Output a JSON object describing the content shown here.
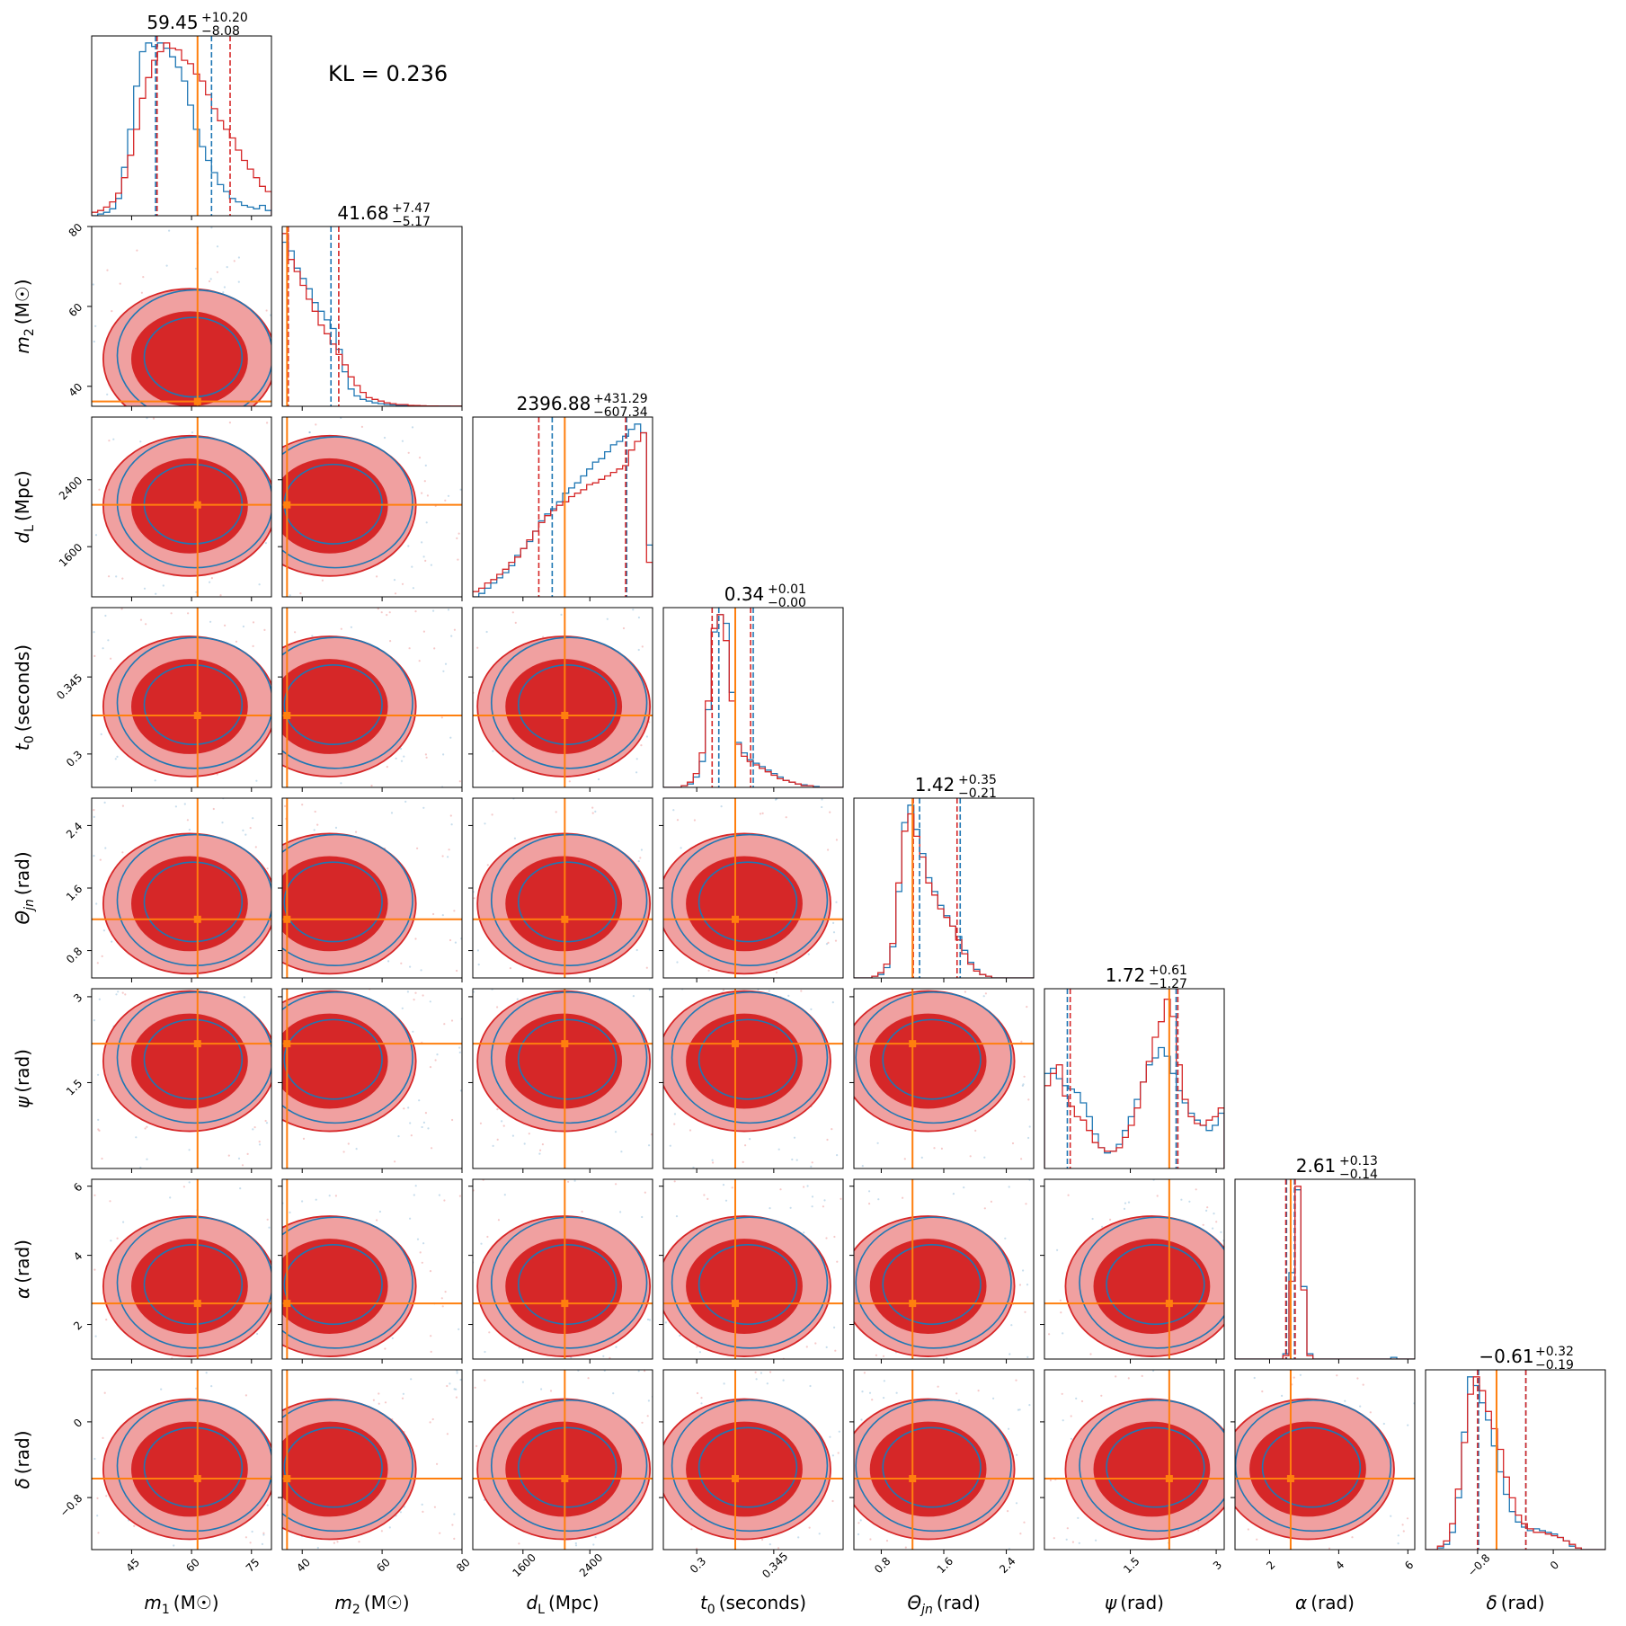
{
  "figure": {
    "annotation": "KL = 0.236"
  },
  "chart_data": {
    "type": "corner",
    "colors": {
      "reference": "#1f77b4",
      "model": "#d62728",
      "model_light": "#f0a0a0",
      "truth": "#ff7f0e"
    },
    "parameters": [
      {
        "label": "m₁ (M☉)",
        "sym": "m",
        "sub": "1",
        "unit": "(M☉)",
        "range": [
          35,
          80
        ],
        "truth": 61.5,
        "ticks": [
          45,
          60,
          75
        ],
        "title_value": "59.45",
        "title_plus": "+10.20",
        "title_minus": "−8.08",
        "quantiles": {
          "model": [
            51.37,
            69.65
          ],
          "reference": [
            51.0,
            65.0
          ]
        },
        "hist_model": [
          0.02,
          0.03,
          0.05,
          0.08,
          0.13,
          0.22,
          0.35,
          0.5,
          0.68,
          0.8,
          0.9,
          0.95,
          1.0,
          0.97,
          0.96,
          0.9,
          0.88,
          0.82,
          0.78,
          0.7,
          0.62,
          0.55,
          0.5,
          0.45,
          0.38,
          0.32,
          0.27,
          0.22,
          0.17,
          0.14
        ],
        "hist_ref": [
          0.0,
          0.01,
          0.02,
          0.04,
          0.1,
          0.28,
          0.5,
          0.75,
          0.95,
          1.0,
          0.98,
          1.0,
          0.97,
          0.92,
          0.86,
          0.78,
          0.64,
          0.5,
          0.4,
          0.32,
          0.25,
          0.18,
          0.14,
          0.1,
          0.08,
          0.06,
          0.05,
          0.04,
          0.06,
          0.03
        ]
      },
      {
        "label": "m₂ (M☉)",
        "sym": "m",
        "sub": "2",
        "unit": "(M☉)",
        "range": [
          35,
          80
        ],
        "truth": 36.2,
        "ticks": [
          40,
          60,
          80
        ],
        "title_value": "41.68",
        "title_plus": "+7.47",
        "title_minus": "−5.17",
        "quantiles": {
          "model": [
            36.51,
            49.15
          ],
          "reference": [
            36.3,
            47.2
          ]
        },
        "hist_model": [
          1.0,
          0.85,
          0.78,
          0.7,
          0.62,
          0.55,
          0.47,
          0.42,
          0.36,
          0.3,
          0.24,
          0.17,
          0.12,
          0.08,
          0.05,
          0.04,
          0.03,
          0.02,
          0.015,
          0.01,
          0.01,
          0.005,
          0.004,
          0.003,
          0.002,
          0.002,
          0.001,
          0.001,
          0.001,
          0.001
        ],
        "hist_ref": [
          0.95,
          0.9,
          0.8,
          0.74,
          0.68,
          0.6,
          0.55,
          0.5,
          0.45,
          0.33,
          0.2,
          0.1,
          0.06,
          0.04,
          0.03,
          0.02,
          0.015,
          0.01,
          0.008,
          0.005,
          0.004,
          0.003,
          0.002,
          0.002,
          0.001,
          0.001,
          0.001,
          0.001,
          0.0,
          0.0
        ]
      },
      {
        "label": "d_L (Mpc)",
        "sym": "d",
        "sub": "L",
        "unit": "(Mpc)",
        "range": [
          1000,
          3150
        ],
        "truth": 2100,
        "ticks": [
          1600,
          2400
        ],
        "title_value": "2396.88",
        "title_plus": "+431.29",
        "title_minus": "−607.34",
        "quantiles": {
          "model": [
            1789.54,
            2828.17
          ],
          "reference": [
            1950.0,
            2840.0
          ]
        },
        "hist_model": [
          0.03,
          0.05,
          0.08,
          0.1,
          0.13,
          0.16,
          0.2,
          0.23,
          0.28,
          0.33,
          0.38,
          0.43,
          0.47,
          0.5,
          0.53,
          0.55,
          0.58,
          0.6,
          0.62,
          0.65,
          0.66,
          0.68,
          0.7,
          0.72,
          0.74,
          0.76,
          0.85,
          0.9,
          0.95,
          0.2
        ],
        "hist_ref": [
          0.0,
          0.02,
          0.05,
          0.08,
          0.11,
          0.14,
          0.18,
          0.24,
          0.28,
          0.32,
          0.38,
          0.44,
          0.48,
          0.51,
          0.55,
          0.6,
          0.63,
          0.66,
          0.7,
          0.74,
          0.78,
          0.8,
          0.84,
          0.88,
          0.9,
          0.93,
          0.97,
          1.0,
          0.95,
          0.3
        ]
      },
      {
        "label": "t₀ (seconds)",
        "sym": "t",
        "sub": "0",
        "unit": "(seconds)",
        "range": [
          0.3235,
          0.3585
        ],
        "truth": 0.3375,
        "ticks": [
          0.33,
          0.345
        ],
        "title_value": "0.34",
        "title_plus": "+0.01",
        "title_minus": "−0.00",
        "quantiles": {
          "model": [
            0.333,
            0.3405
          ],
          "reference": [
            0.3343,
            0.341
          ]
        },
        "hist_model": [
          0.0,
          0.0,
          0.0,
          0.01,
          0.03,
          0.08,
          0.2,
          0.5,
          0.92,
          1.0,
          0.85,
          0.5,
          0.25,
          0.18,
          0.15,
          0.13,
          0.11,
          0.09,
          0.07,
          0.05,
          0.04,
          0.03,
          0.02,
          0.01,
          0.01,
          0.0,
          0.0,
          0.0,
          0.0,
          0.0
        ],
        "hist_ref": [
          0.0,
          0.0,
          0.0,
          0.01,
          0.02,
          0.06,
          0.15,
          0.45,
          0.9,
          1.0,
          0.95,
          0.55,
          0.26,
          0.2,
          0.16,
          0.14,
          0.12,
          0.1,
          0.08,
          0.06,
          0.04,
          0.03,
          0.02,
          0.015,
          0.01,
          0.005,
          0.0,
          0.0,
          0.0,
          0.0
        ]
      },
      {
        "label": "Θ_jn (rad)",
        "sym": "Θ",
        "sub": "jn",
        "unit": "(rad)",
        "range": [
          0.45,
          2.75
        ],
        "truth": 1.2,
        "ticks": [
          0.8,
          1.6,
          2.4
        ],
        "title_value": "1.42",
        "title_plus": "+0.35",
        "title_minus": "−0.21",
        "quantiles": {
          "model": [
            1.21,
            1.77
          ],
          "reference": [
            1.29,
            1.81
          ]
        },
        "hist_model": [
          0.0,
          0.0,
          0.0,
          0.01,
          0.03,
          0.08,
          0.2,
          0.55,
          0.85,
          0.95,
          0.82,
          0.7,
          0.55,
          0.48,
          0.4,
          0.35,
          0.3,
          0.22,
          0.14,
          0.08,
          0.04,
          0.02,
          0.01,
          0.0,
          0.0,
          0.0,
          0.0,
          0.0,
          0.0,
          0.0
        ],
        "hist_ref": [
          0.0,
          0.0,
          0.0,
          0.01,
          0.02,
          0.06,
          0.18,
          0.5,
          0.9,
          1.0,
          0.86,
          0.72,
          0.58,
          0.5,
          0.42,
          0.36,
          0.3,
          0.24,
          0.16,
          0.09,
          0.05,
          0.02,
          0.01,
          0.0,
          0.0,
          0.0,
          0.0,
          0.0,
          0.0,
          0.0
        ]
      },
      {
        "label": "ψ (rad)",
        "sym": "ψ",
        "sub": "",
        "unit": "(rad)",
        "range": [
          0.0,
          3.14
        ],
        "truth": 2.18,
        "ticks": [
          1.5,
          3.0
        ],
        "title_value": "1.72",
        "title_plus": "+0.61",
        "title_minus": "−1.27",
        "quantiles": {
          "model": [
            0.45,
            2.33
          ],
          "reference": [
            0.4,
            2.3
          ]
        },
        "hist_model": [
          0.48,
          0.55,
          0.6,
          0.42,
          0.36,
          0.3,
          0.28,
          0.22,
          0.15,
          0.12,
          0.1,
          0.1,
          0.12,
          0.18,
          0.25,
          0.35,
          0.5,
          0.62,
          0.76,
          0.85,
          0.98,
          0.88,
          0.6,
          0.4,
          0.3,
          0.26,
          0.25,
          0.28,
          0.3,
          0.35
        ],
        "hist_ref": [
          0.55,
          0.58,
          0.52,
          0.48,
          0.46,
          0.44,
          0.38,
          0.3,
          0.2,
          0.12,
          0.09,
          0.1,
          0.14,
          0.22,
          0.3,
          0.4,
          0.5,
          0.6,
          0.64,
          0.7,
          0.65,
          0.55,
          0.45,
          0.38,
          0.32,
          0.28,
          0.25,
          0.22,
          0.25,
          0.32
        ]
      },
      {
        "label": "α (rad)",
        "sym": "α",
        "sub": "",
        "unit": "(rad)",
        "range": [
          1.0,
          6.2
        ],
        "truth": 2.61,
        "ticks": [
          2,
          4,
          6
        ],
        "title_value": "2.61",
        "title_plus": "+0.13",
        "title_minus": "−0.14",
        "quantiles": {
          "model": [
            2.47,
            2.74
          ],
          "reference": [
            2.49,
            2.72
          ]
        },
        "hist_model": [
          0.0,
          0.0,
          0.0,
          0.0,
          0.0,
          0.0,
          0.0,
          0.0,
          0.02,
          0.45,
          1.0,
          0.4,
          0.02,
          0.0,
          0.0,
          0.0,
          0.0,
          0.0,
          0.0,
          0.0,
          0.0,
          0.0,
          0.0,
          0.0,
          0.0,
          0.0,
          0.0,
          0.0,
          0.0,
          0.0
        ],
        "hist_ref": [
          0.0,
          0.0,
          0.0,
          0.0,
          0.0,
          0.0,
          0.0,
          0.0,
          0.03,
          0.5,
          0.98,
          0.42,
          0.03,
          0.0,
          0.0,
          0.0,
          0.0,
          0.0,
          0.0,
          0.0,
          0.0,
          0.0,
          0.0,
          0.0,
          0.0,
          0.0,
          0.01,
          0.0,
          0.0,
          0.0
        ]
      },
      {
        "label": "δ (rad)",
        "sym": "δ",
        "sub": "",
        "unit": "(rad)",
        "range": [
          -1.35,
          0.55
        ],
        "truth": -0.6,
        "ticks": [
          -0.8,
          0.0
        ],
        "title_value": "−0.61",
        "title_plus": "+0.32",
        "title_minus": "−0.19",
        "quantiles": {
          "model": [
            -0.8,
            -0.29
          ],
          "reference": [
            -0.79,
            -0.29
          ]
        },
        "hist_model": [
          0.0,
          0.0,
          0.02,
          0.05,
          0.15,
          0.35,
          0.62,
          0.9,
          1.0,
          0.92,
          0.8,
          0.7,
          0.58,
          0.42,
          0.3,
          0.2,
          0.15,
          0.12,
          0.1,
          0.1,
          0.09,
          0.08,
          0.07,
          0.05,
          0.03,
          0.01,
          0.0,
          0.0,
          0.0,
          0.0
        ],
        "hist_ref": [
          0.0,
          0.0,
          0.01,
          0.03,
          0.1,
          0.3,
          0.68,
          1.0,
          0.95,
          0.85,
          0.75,
          0.6,
          0.45,
          0.32,
          0.22,
          0.16,
          0.13,
          0.11,
          0.12,
          0.11,
          0.1,
          0.09,
          0.07,
          0.05,
          0.02,
          0.01,
          0.0,
          0.0,
          0.0,
          0.0
        ]
      }
    ]
  }
}
